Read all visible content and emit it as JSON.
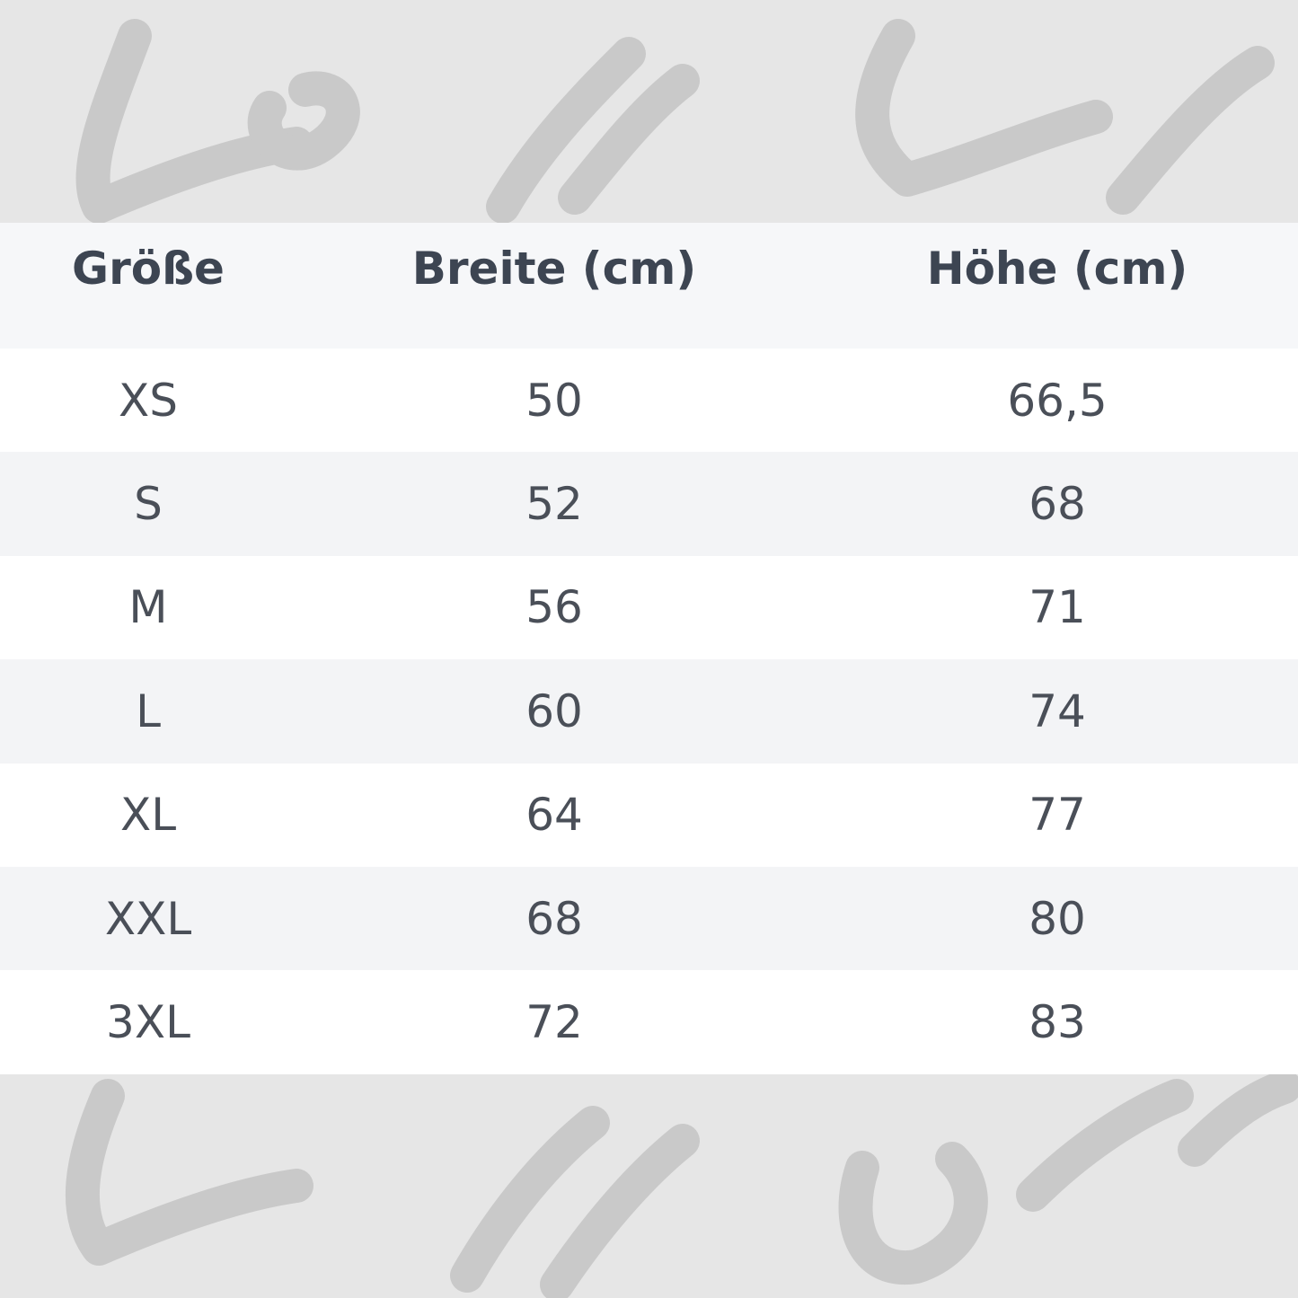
{
  "watermark": "Low and Lower",
  "table": {
    "headers": [
      "Größe",
      "Breite (cm)",
      "Höhe (cm)"
    ],
    "rows": [
      [
        "XS",
        "50",
        "66,5"
      ],
      [
        "S",
        "52",
        "68"
      ],
      [
        "M",
        "56",
        "71"
      ],
      [
        "L",
        "60",
        "74"
      ],
      [
        "XL",
        "64",
        "77"
      ],
      [
        "XXL",
        "68",
        "80"
      ],
      [
        "3XL",
        "72",
        "83"
      ]
    ]
  },
  "colors": {
    "background": "#e6e6e6",
    "watermark": "#c9c9c9",
    "header_bg": "#f6f7f9",
    "row_alt": "#f3f4f6",
    "text": "#4a4f58"
  }
}
